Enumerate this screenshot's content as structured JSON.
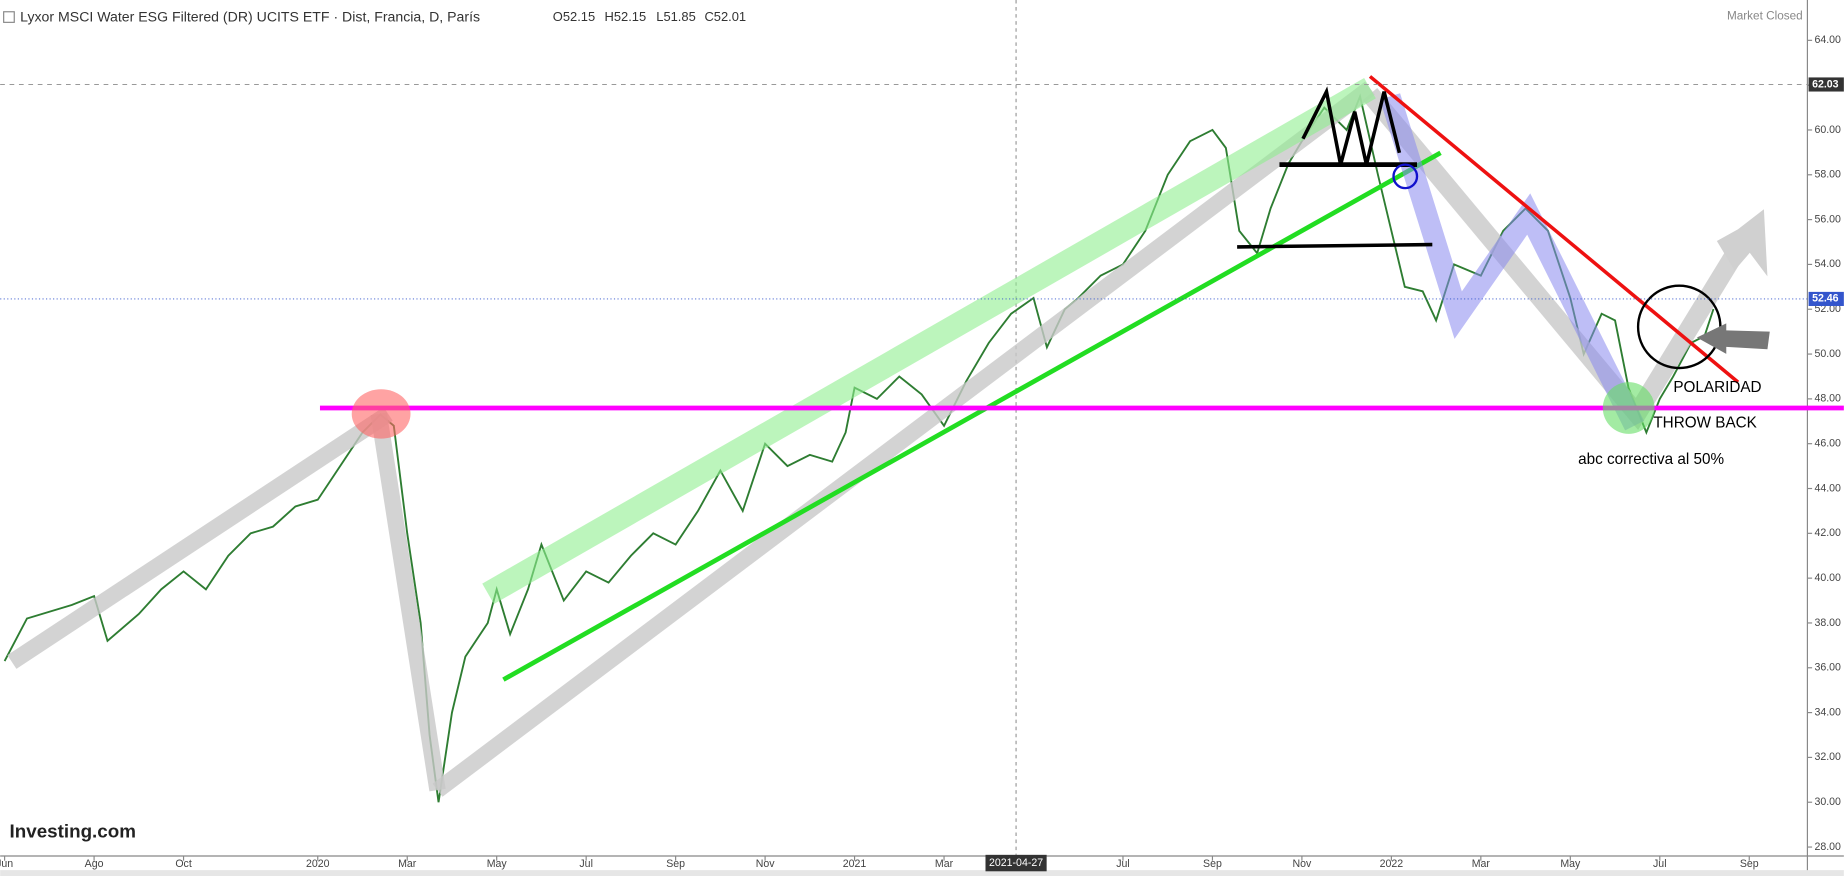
{
  "chart_data": {
    "type": "line",
    "title": "Lyxor MSCI Water ESG Filtered (DR) UCITS ETF · Dist, Francia, D, París",
    "ohlc_labels": [
      "O52.15",
      "H52.15",
      "L51.85",
      "C52.01"
    ],
    "status": "Market Closed",
    "logo": "Investing.com",
    "crosshair_label": "2021-04-27",
    "annotations": [
      "POLARIDAD",
      "THROW BACK",
      "abc correctiva al 50%"
    ],
    "price_markers": [
      62.03,
      52.46
    ],
    "series": [
      {
        "color": "#2e7d32",
        "x": [
          0,
          0.5,
          1,
          1.5,
          2,
          2.3,
          3,
          3.5,
          4,
          4.5,
          5,
          5.5,
          6,
          6.5,
          7,
          7.5,
          8,
          8.4,
          8.7,
          9,
          9.3,
          9.5,
          9.7,
          10,
          10.3,
          10.8,
          11,
          11.3,
          11.7,
          12,
          12.5,
          13,
          13.5,
          14,
          14.5,
          15,
          15.5,
          16,
          16.5,
          17,
          17.5,
          18,
          18.5,
          18.8,
          19,
          19.5,
          20,
          20.5,
          21,
          21.5,
          22,
          22.5,
          23,
          23.3,
          23.7,
          24,
          24.5,
          25,
          25.5,
          26,
          26.5,
          27,
          27.3,
          27.6,
          28,
          28.3,
          28.7,
          29,
          29.5,
          30,
          30.3,
          30.7,
          31,
          31.3,
          31.7,
          32,
          32.4,
          33,
          33.5,
          34,
          34.5,
          35,
          35.3,
          35.7,
          36,
          36.3,
          36.7,
          37,
          37.3,
          37.7,
          38,
          38.2
        ],
        "values": [
          36.3,
          38.2,
          38.5,
          38.8,
          39.2,
          37.2,
          38.4,
          39.5,
          40.3,
          39.5,
          41,
          42,
          42.3,
          43.2,
          43.5,
          45,
          46.5,
          47.3,
          46.8,
          42,
          38,
          33,
          30,
          34,
          36.5,
          38,
          39.5,
          37.5,
          39.5,
          41.5,
          39,
          40.3,
          39.8,
          41,
          42,
          41.5,
          43,
          44.8,
          43,
          46,
          45,
          45.5,
          45.2,
          46.5,
          48.5,
          48,
          49,
          48.2,
          46.8,
          48.8,
          50.5,
          51.8,
          52.5,
          50.3,
          52,
          52.5,
          53.5,
          54,
          55.5,
          58,
          59.5,
          60,
          59.2,
          55.5,
          54.5,
          56.5,
          58.5,
          59.5,
          61,
          60,
          61.5,
          58,
          55.5,
          53,
          52.8,
          51.5,
          54,
          53.5,
          55.5,
          56.5,
          55.5,
          52.5,
          50,
          51.8,
          51.5,
          48.5,
          46.5,
          48,
          49,
          50.5,
          50.8,
          52.01
        ]
      }
    ],
    "xlim": [
      -0.1,
      40.3
    ],
    "xticks": [
      {
        "value": 0,
        "label": "Jun"
      },
      {
        "value": 2,
        "label": "Ago"
      },
      {
        "value": 4,
        "label": "Oct"
      },
      {
        "value": 7,
        "label": "2020"
      },
      {
        "value": 9,
        "label": "Mar"
      },
      {
        "value": 11,
        "label": "May"
      },
      {
        "value": 13,
        "label": "Jul"
      },
      {
        "value": 15,
        "label": "Sep"
      },
      {
        "value": 17,
        "label": "Nov"
      },
      {
        "value": 19,
        "label": "2021"
      },
      {
        "value": 21,
        "label": "Mar"
      },
      {
        "value": 25,
        "label": "Jul"
      },
      {
        "value": 27,
        "label": "Sep"
      },
      {
        "value": 29,
        "label": "Nov"
      },
      {
        "value": 31,
        "label": "2022"
      },
      {
        "value": 33,
        "label": "Mar"
      },
      {
        "value": 35,
        "label": "May"
      },
      {
        "value": 37,
        "label": "Jul"
      },
      {
        "value": 39,
        "label": "Sep"
      }
    ],
    "ylim": [
      27.6,
      65.8
    ],
    "yticks": [
      {
        "value": 28,
        "label": "28.00"
      },
      {
        "value": 30,
        "label": "30.00"
      },
      {
        "value": 32,
        "label": "32.00"
      },
      {
        "value": 34,
        "label": "34.00"
      },
      {
        "value": 36,
        "label": "36.00"
      },
      {
        "value": 38,
        "label": "38.00"
      },
      {
        "value": 40,
        "label": "40.00"
      },
      {
        "value": 42,
        "label": "42.00"
      },
      {
        "value": 44,
        "label": "44.00"
      },
      {
        "value": 46,
        "label": "46.00"
      },
      {
        "value": 48,
        "label": "48.00"
      },
      {
        "value": 50,
        "label": "50.00"
      },
      {
        "value": 52,
        "label": "52.00"
      },
      {
        "value": 54,
        "label": "54.00"
      },
      {
        "value": 56,
        "label": "56.00"
      },
      {
        "value": 58,
        "label": "58.00"
      },
      {
        "value": 60,
        "label": "60.00"
      },
      {
        "value": 62,
        "label": "62.00"
      },
      {
        "value": 64,
        "label": "64.00"
      }
    ]
  }
}
